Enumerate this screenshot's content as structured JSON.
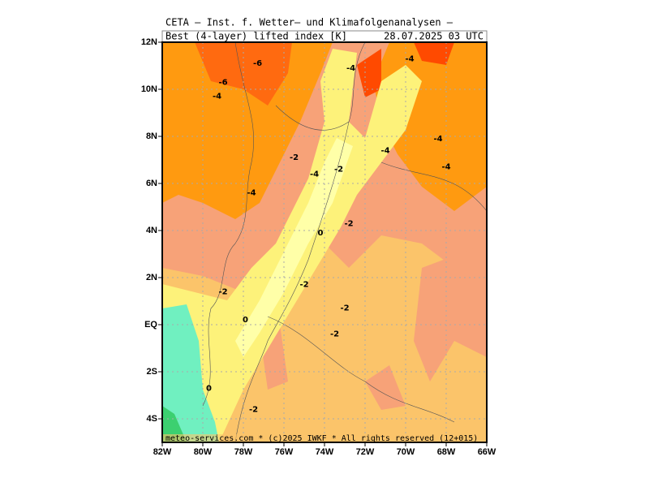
{
  "chart_data": {
    "type": "map",
    "title": "CETA — Inst. f. Wetter— und Klimafolgenanalysen —",
    "subtitle": "Best_(4-layer)_lifted_index_[K]",
    "date": "28.07.2025 03 UTC",
    "footer": "meteo-services.com * (c)2025 IWKF * All rights reserved (12+015)",
    "xlim": [
      -82,
      -66
    ],
    "ylim": [
      -5,
      12
    ],
    "xticks": [
      {
        "value": -82,
        "label": "82W"
      },
      {
        "value": -80,
        "label": "80W"
      },
      {
        "value": -78,
        "label": "78W"
      },
      {
        "value": -76,
        "label": "76W"
      },
      {
        "value": -74,
        "label": "74W"
      },
      {
        "value": -72,
        "label": "72W"
      },
      {
        "value": -70,
        "label": "70W"
      },
      {
        "value": -68,
        "label": "68W"
      },
      {
        "value": -66,
        "label": "66W"
      }
    ],
    "yticks": [
      {
        "value": 12,
        "label": "12N"
      },
      {
        "value": 10,
        "label": "10N"
      },
      {
        "value": 8,
        "label": "8N"
      },
      {
        "value": 6,
        "label": "6N"
      },
      {
        "value": 4,
        "label": "4N"
      },
      {
        "value": 2,
        "label": "2N"
      },
      {
        "value": 0,
        "label": "EQ"
      },
      {
        "value": -2,
        "label": "2S"
      },
      {
        "value": -4,
        "label": "4S"
      }
    ],
    "grid": true,
    "contour_labels": [
      {
        "text": "-6",
        "lon": -77.3,
        "lat": 11.1
      },
      {
        "text": "-6",
        "lon": -79.0,
        "lat": 10.3
      },
      {
        "text": "-4",
        "lon": -79.3,
        "lat": 9.7
      },
      {
        "text": "-4",
        "lon": -72.7,
        "lat": 10.9
      },
      {
        "text": "-4",
        "lon": -69.8,
        "lat": 11.3
      },
      {
        "text": "-4",
        "lon": -68.4,
        "lat": 7.9
      },
      {
        "text": "-4",
        "lon": -71.0,
        "lat": 7.4
      },
      {
        "text": "-4",
        "lon": -68.0,
        "lat": 6.7
      },
      {
        "text": "-2",
        "lon": -75.5,
        "lat": 7.1
      },
      {
        "text": "-4",
        "lon": -74.5,
        "lat": 6.4
      },
      {
        "text": "-2",
        "lon": -73.3,
        "lat": 6.6
      },
      {
        "text": "-4",
        "lon": -77.6,
        "lat": 5.6
      },
      {
        "text": "-2",
        "lon": -72.8,
        "lat": 4.3
      },
      {
        "text": "0",
        "lon": -74.2,
        "lat": 3.9
      },
      {
        "text": "-2",
        "lon": -75.0,
        "lat": 1.7
      },
      {
        "text": "-2",
        "lon": -79.0,
        "lat": 1.4
      },
      {
        "text": "-2",
        "lon": -73.0,
        "lat": 0.7
      },
      {
        "text": "0",
        "lon": -77.9,
        "lat": 0.2
      },
      {
        "text": "-2",
        "lon": -73.5,
        "lat": -0.4
      },
      {
        "text": "0",
        "lon": -79.7,
        "lat": -2.7
      },
      {
        "text": "-2",
        "lon": -77.5,
        "lat": -3.6
      }
    ]
  }
}
